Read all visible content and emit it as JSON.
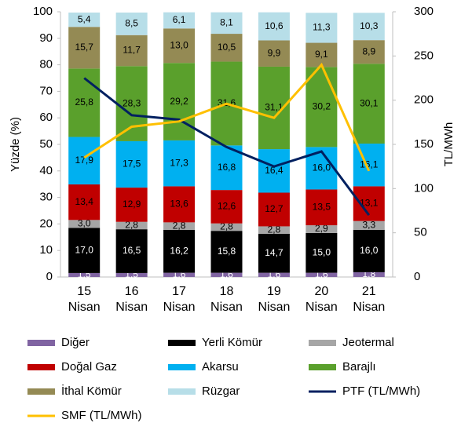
{
  "chart_data": {
    "type": "bar",
    "categories": [
      "15 Nisan",
      "16 Nisan",
      "17 Nisan",
      "18 Nisan",
      "19 Nisan",
      "20 Nisan",
      "21 Nisan"
    ],
    "y_label": "Yüzde (%)",
    "y2_label": "TL/MWh",
    "ylim": [
      0,
      100
    ],
    "yticks": [
      0,
      10,
      20,
      30,
      40,
      50,
      60,
      70,
      80,
      90,
      100
    ],
    "y2lim": [
      0,
      300
    ],
    "y2ticks": [
      0,
      50,
      100,
      150,
      200,
      250,
      300
    ],
    "series": [
      {
        "name": "Diğer",
        "color": "#8064a2",
        "values": [
          1.5,
          1.5,
          1.6,
          1.6,
          1.6,
          1.6,
          1.8
        ],
        "value_labels": [
          "1,5",
          "1,5",
          "1,6",
          "1,6",
          "1,6",
          "1,6",
          "1,8"
        ]
      },
      {
        "name": "Yerli Kömür",
        "color": "#000000",
        "values": [
          17.0,
          16.5,
          16.2,
          15.8,
          14.7,
          15.0,
          16.0
        ],
        "value_labels": [
          "17,0",
          "16,5",
          "16,2",
          "15,8",
          "14,7",
          "15,0",
          "16,0"
        ]
      },
      {
        "name": "Jeotermal",
        "color": "#a6a6a6",
        "values": [
          3.0,
          2.8,
          2.8,
          2.8,
          2.8,
          2.9,
          3.3
        ],
        "value_labels": [
          "3,0",
          "2,8",
          "2,8",
          "2,8",
          "2,8",
          "2,9",
          "3,3"
        ]
      },
      {
        "name": "Doğal Gaz",
        "color": "#c00000",
        "values": [
          13.4,
          12.9,
          13.6,
          12.6,
          12.7,
          13.5,
          13.1
        ],
        "value_labels": [
          "13,4",
          "12,9",
          "13,6",
          "12,6",
          "12,7",
          "13,5",
          "13,1"
        ]
      },
      {
        "name": "Akarsu",
        "color": "#00b0f0",
        "values": [
          17.9,
          17.5,
          17.3,
          16.8,
          16.4,
          16.0,
          16.1
        ],
        "value_labels": [
          "17,9",
          "17,5",
          "17,3",
          "16,8",
          "16,4",
          "16,0",
          "16,1"
        ]
      },
      {
        "name": "Barajlı",
        "color": "#5aa02c",
        "values": [
          25.8,
          28.3,
          29.2,
          31.6,
          31.1,
          30.2,
          30.1
        ],
        "value_labels": [
          "25,8",
          "28,3",
          "29,2",
          "31,6",
          "31,1",
          "30,2",
          "30,1"
        ]
      },
      {
        "name": "İthal Kömür",
        "color": "#948a54",
        "values": [
          15.7,
          11.7,
          13.0,
          10.5,
          9.9,
          9.1,
          8.9
        ],
        "value_labels": [
          "15,7",
          "11,7",
          "13,0",
          "10,5",
          "9,9",
          "9,1",
          "8,9"
        ]
      },
      {
        "name": "Rüzgar",
        "color": "#b7dee8",
        "values": [
          5.4,
          8.5,
          6.1,
          8.1,
          10.6,
          11.3,
          10.3
        ],
        "value_labels": [
          "5,4",
          "8,5",
          "6,1",
          "8,1",
          "10,6",
          "11,3",
          "10,3"
        ]
      },
      {
        "name": "PTF (TL/MWh)",
        "type": "line",
        "axis": "y2",
        "color": "#002060",
        "values": [
          225,
          183,
          178,
          147,
          125,
          142,
          70
        ]
      },
      {
        "name": "SMF (TL/MWh)",
        "type": "line",
        "axis": "y2",
        "color": "#ffc000",
        "values": [
          135,
          170,
          176,
          196,
          180,
          240,
          120
        ]
      }
    ]
  }
}
